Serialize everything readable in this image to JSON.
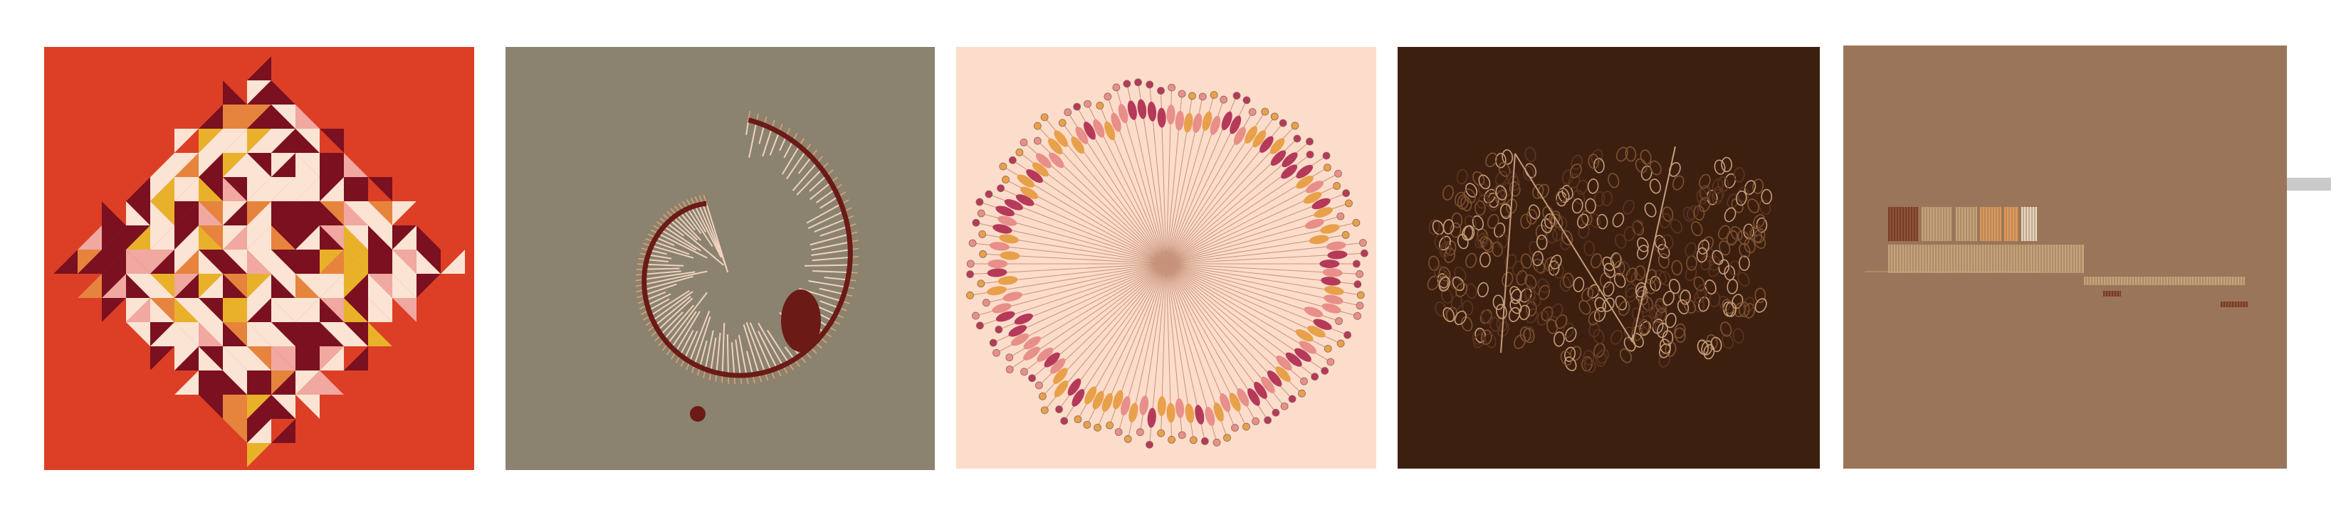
{
  "gallery": {
    "artworks": [
      {
        "name": "geometric-quilt",
        "background": "#dc3f25",
        "palette": [
          "#7a1020",
          "#fbe4d4",
          "#e9b12a",
          "#e6843e",
          "#f0a8a0"
        ]
      },
      {
        "name": "spiral-sticks",
        "background": "#8b8370",
        "palette": [
          "#6b1a15",
          "#f0d2bd",
          "#e8a270"
        ]
      },
      {
        "name": "radial-burst",
        "background": "#fcdcca",
        "palette": [
          "#c7937a",
          "#e88f8a",
          "#e8a04a",
          "#b53a5a"
        ]
      },
      {
        "name": "tiled-outlines",
        "background": "#3d1f10",
        "palette": [
          "#c69e7a",
          "#7e5230",
          "#5b3520"
        ]
      },
      {
        "name": "stripe-bars",
        "background": "#9a7559",
        "palette": [
          "#7a3a22",
          "#c4a27a",
          "#d89a5a",
          "#e8d8c4",
          "#e49a5a"
        ]
      }
    ],
    "scrollbar": {
      "color": "#c9c9c9"
    }
  }
}
